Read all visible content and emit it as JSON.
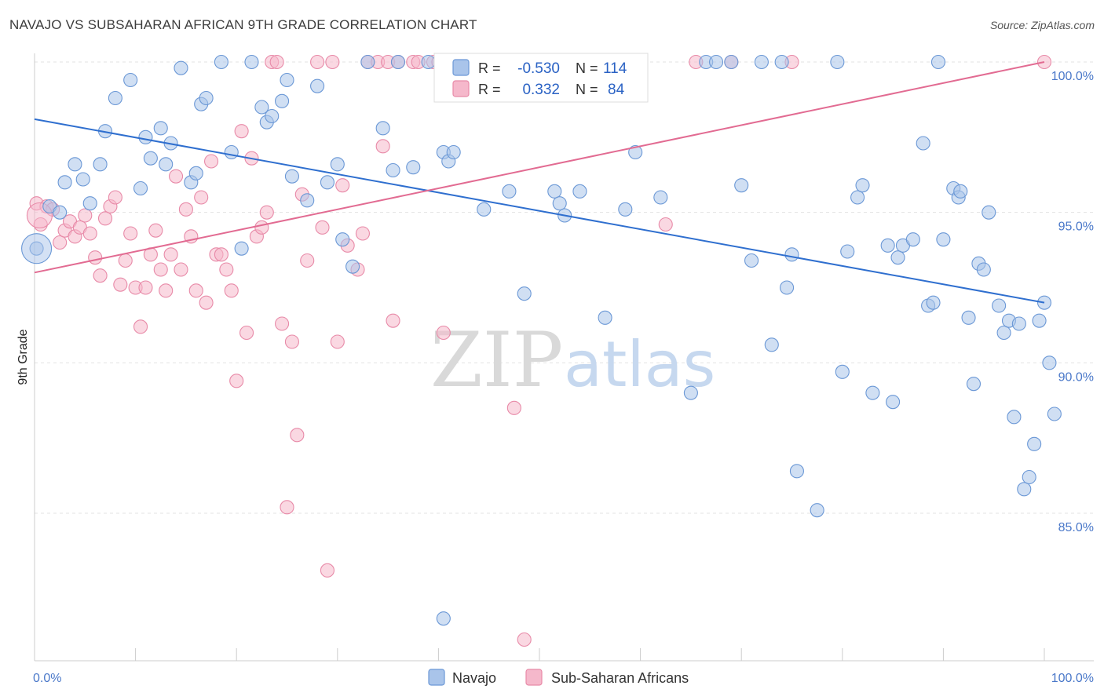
{
  "title": "NAVAJO VS SUBSAHARAN AFRICAN 9TH GRADE CORRELATION CHART",
  "source": "Source: ZipAtlas.com",
  "watermark": {
    "zip": "ZIP",
    "atlas": "atlas"
  },
  "colors": {
    "navajo_fill": "#a9c4ea",
    "navajo_stroke": "#6b98d6",
    "navajo_line": "#2f6fcf",
    "sub_fill": "#f5b8cb",
    "sub_stroke": "#e88aa8",
    "sub_line": "#e26b92"
  },
  "legend": {
    "r_label": "R =",
    "n_label": "N =",
    "navajo_r": "-0.530",
    "navajo_n": "114",
    "sub_r": "0.332",
    "sub_n": "84"
  },
  "bottom_legend": [
    "Navajo",
    "Sub-Saharan Africans"
  ],
  "chart_data": {
    "type": "scatter",
    "ylabel": "9th Grade",
    "xlabel": "",
    "xlim": [
      0,
      100
    ],
    "ylim": [
      80.5,
      100.8
    ],
    "x_tick_labels": [
      "0.0%",
      "100.0%"
    ],
    "y_ticks": [
      85,
      90,
      95,
      100
    ],
    "y_tick_labels": [
      "85.0%",
      "90.0%",
      "95.0%",
      "100.0%"
    ],
    "grid": true,
    "series": [
      {
        "name": "Navajo",
        "trend": {
          "x": [
            0,
            100
          ],
          "y": [
            98.1,
            92.0
          ]
        },
        "points": [
          [
            0.2,
            93.8
          ],
          [
            1.5,
            95.2
          ],
          [
            3.0,
            96.0
          ],
          [
            2.5,
            95.0
          ],
          [
            4.0,
            96.6
          ],
          [
            5.5,
            95.3
          ],
          [
            6.5,
            96.6
          ],
          [
            4.8,
            96.1
          ],
          [
            7.0,
            97.7
          ],
          [
            8.0,
            98.8
          ],
          [
            9.5,
            99.4
          ],
          [
            11.5,
            96.8
          ],
          [
            10.5,
            95.8
          ],
          [
            11.0,
            97.5
          ],
          [
            12.5,
            97.8
          ],
          [
            13.5,
            97.3
          ],
          [
            13.0,
            96.6
          ],
          [
            14.5,
            99.8
          ],
          [
            15.5,
            96.0
          ],
          [
            16.5,
            98.6
          ],
          [
            16.0,
            96.3
          ],
          [
            17.0,
            98.8
          ],
          [
            18.5,
            100
          ],
          [
            19.5,
            97.0
          ],
          [
            20.5,
            93.8
          ],
          [
            21.5,
            100
          ],
          [
            22.5,
            98.5
          ],
          [
            23.0,
            98.0
          ],
          [
            23.5,
            98.2
          ],
          [
            24.5,
            98.7
          ],
          [
            25.0,
            99.4
          ],
          [
            25.5,
            96.2
          ],
          [
            27.0,
            95.4
          ],
          [
            28.0,
            99.2
          ],
          [
            29.0,
            96.0
          ],
          [
            30.5,
            94.1
          ],
          [
            30.0,
            96.6
          ],
          [
            31.5,
            93.2
          ],
          [
            33.0,
            100
          ],
          [
            34.5,
            97.8
          ],
          [
            35.5,
            96.4
          ],
          [
            36.0,
            100
          ],
          [
            37.5,
            96.5
          ],
          [
            39.0,
            100
          ],
          [
            40.5,
            97.0
          ],
          [
            41.0,
            96.7
          ],
          [
            42.5,
            100
          ],
          [
            43.0,
            100
          ],
          [
            44.5,
            95.1
          ],
          [
            45.0,
            100
          ],
          [
            46.5,
            100
          ],
          [
            47.0,
            95.7
          ],
          [
            48.5,
            92.3
          ],
          [
            51.5,
            95.7
          ],
          [
            52.0,
            95.3
          ],
          [
            52.5,
            94.9
          ],
          [
            54.0,
            95.7
          ],
          [
            56.5,
            91.5
          ],
          [
            57.0,
            100
          ],
          [
            58.5,
            95.1
          ],
          [
            59.5,
            97.0
          ],
          [
            62.0,
            95.5
          ],
          [
            65.0,
            89.0
          ],
          [
            66.5,
            100
          ],
          [
            67.5,
            100
          ],
          [
            69.0,
            100
          ],
          [
            70.0,
            95.9
          ],
          [
            71.0,
            93.4
          ],
          [
            72.0,
            100
          ],
          [
            73.0,
            90.6
          ],
          [
            74.0,
            100
          ],
          [
            74.5,
            92.5
          ],
          [
            75.0,
            93.6
          ],
          [
            75.5,
            86.4
          ],
          [
            77.5,
            85.1
          ],
          [
            79.5,
            100
          ],
          [
            80.0,
            89.7
          ],
          [
            80.5,
            93.7
          ],
          [
            81.5,
            95.5
          ],
          [
            82.0,
            95.9
          ],
          [
            83.0,
            89.0
          ],
          [
            84.5,
            93.9
          ],
          [
            85.0,
            88.7
          ],
          [
            85.5,
            93.5
          ],
          [
            86.0,
            93.9
          ],
          [
            87.0,
            94.1
          ],
          [
            88.0,
            97.3
          ],
          [
            88.5,
            91.9
          ],
          [
            89.0,
            92.0
          ],
          [
            89.5,
            100
          ],
          [
            90.0,
            94.1
          ],
          [
            91.0,
            95.8
          ],
          [
            91.5,
            95.5
          ],
          [
            91.7,
            95.7
          ],
          [
            92.5,
            91.5
          ],
          [
            93.0,
            89.3
          ],
          [
            93.5,
            93.3
          ],
          [
            94.0,
            93.1
          ],
          [
            94.5,
            95.0
          ],
          [
            95.5,
            91.9
          ],
          [
            96.0,
            91.0
          ],
          [
            96.5,
            91.4
          ],
          [
            97.0,
            88.2
          ],
          [
            97.5,
            91.3
          ],
          [
            98.0,
            85.8
          ],
          [
            98.5,
            86.2
          ],
          [
            99.0,
            87.3
          ],
          [
            99.5,
            91.4
          ],
          [
            100.0,
            92.0
          ],
          [
            100.5,
            90.0
          ],
          [
            101.0,
            88.3
          ],
          [
            40.5,
            81.5
          ],
          [
            41.5,
            97.0
          ],
          [
            42.0,
            100
          ]
        ]
      },
      {
        "name": "Sub-Saharan Africans",
        "trend": {
          "x": [
            0,
            100
          ],
          "y": [
            93.0,
            100.0
          ]
        },
        "points": [
          [
            0.2,
            95.3
          ],
          [
            0.6,
            94.6
          ],
          [
            1.2,
            95.2
          ],
          [
            1.8,
            95.1
          ],
          [
            2.5,
            94.0
          ],
          [
            3.0,
            94.4
          ],
          [
            3.5,
            94.7
          ],
          [
            4.0,
            94.2
          ],
          [
            4.5,
            94.5
          ],
          [
            5.0,
            94.9
          ],
          [
            5.5,
            94.3
          ],
          [
            6.0,
            93.5
          ],
          [
            6.5,
            92.9
          ],
          [
            7.0,
            94.8
          ],
          [
            7.5,
            95.2
          ],
          [
            8.0,
            95.5
          ],
          [
            8.5,
            92.6
          ],
          [
            9.0,
            93.4
          ],
          [
            9.5,
            94.3
          ],
          [
            10.0,
            92.5
          ],
          [
            10.5,
            91.2
          ],
          [
            11.0,
            92.5
          ],
          [
            11.5,
            93.6
          ],
          [
            12.0,
            94.4
          ],
          [
            12.5,
            93.1
          ],
          [
            13.0,
            92.4
          ],
          [
            13.5,
            93.6
          ],
          [
            14.0,
            96.2
          ],
          [
            14.5,
            93.1
          ],
          [
            15.0,
            95.1
          ],
          [
            15.5,
            94.2
          ],
          [
            16.0,
            92.4
          ],
          [
            16.5,
            95.5
          ],
          [
            17.0,
            92.0
          ],
          [
            17.5,
            96.7
          ],
          [
            18.0,
            93.6
          ],
          [
            18.5,
            93.6
          ],
          [
            19.0,
            93.1
          ],
          [
            19.5,
            92.4
          ],
          [
            20.0,
            89.4
          ],
          [
            20.5,
            97.7
          ],
          [
            21.0,
            91.0
          ],
          [
            21.5,
            96.8
          ],
          [
            22.0,
            94.2
          ],
          [
            22.5,
            94.5
          ],
          [
            23.0,
            95.0
          ],
          [
            23.5,
            100
          ],
          [
            24.0,
            100
          ],
          [
            24.5,
            91.3
          ],
          [
            25.0,
            85.2
          ],
          [
            25.5,
            90.7
          ],
          [
            26.0,
            87.6
          ],
          [
            26.5,
            95.6
          ],
          [
            27.0,
            93.4
          ],
          [
            28.0,
            100
          ],
          [
            28.5,
            94.5
          ],
          [
            29.0,
            83.1
          ],
          [
            29.5,
            100
          ],
          [
            30.0,
            90.7
          ],
          [
            30.5,
            95.9
          ],
          [
            31.0,
            93.9
          ],
          [
            32.0,
            93.1
          ],
          [
            32.5,
            94.3
          ],
          [
            33.0,
            100
          ],
          [
            34.0,
            100
          ],
          [
            34.5,
            97.2
          ],
          [
            35.0,
            100
          ],
          [
            35.5,
            91.4
          ],
          [
            36.0,
            100
          ],
          [
            37.5,
            100
          ],
          [
            38.0,
            100
          ],
          [
            39.5,
            100
          ],
          [
            40.0,
            100
          ],
          [
            40.5,
            91.0
          ],
          [
            41.0,
            100
          ],
          [
            42.0,
            100
          ],
          [
            47.5,
            88.5
          ],
          [
            48.5,
            80.8
          ],
          [
            49.0,
            100
          ],
          [
            62.5,
            94.6
          ],
          [
            65.5,
            100
          ],
          [
            69.0,
            100
          ],
          [
            75.0,
            100
          ],
          [
            100.0,
            100
          ]
        ]
      }
    ]
  }
}
